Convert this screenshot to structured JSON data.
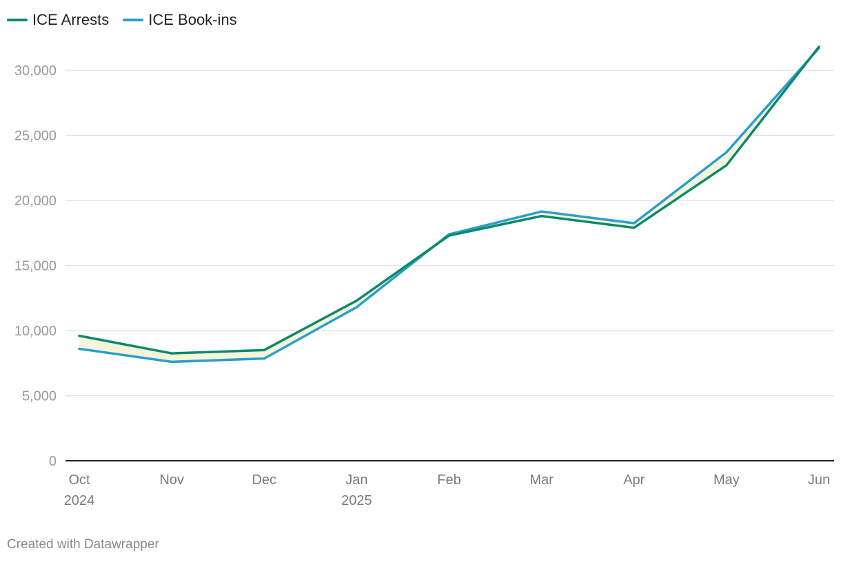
{
  "chart_data": {
    "type": "line",
    "categories": [
      "Oct 2024",
      "Nov",
      "Dec",
      "Jan 2025",
      "Feb",
      "Mar",
      "Apr",
      "May",
      "Jun"
    ],
    "x_tick_labels": [
      {
        "line1": "Oct",
        "line2": "2024"
      },
      {
        "line1": "Nov",
        "line2": ""
      },
      {
        "line1": "Dec",
        "line2": ""
      },
      {
        "line1": "Jan",
        "line2": "2025"
      },
      {
        "line1": "Feb",
        "line2": ""
      },
      {
        "line1": "Mar",
        "line2": ""
      },
      {
        "line1": "Apr",
        "line2": ""
      },
      {
        "line1": "May",
        "line2": ""
      },
      {
        "line1": "Jun",
        "line2": ""
      }
    ],
    "series": [
      {
        "name": "ICE Arrests",
        "color": "#0a8a6a",
        "values": [
          9600,
          8250,
          8500,
          12300,
          17300,
          18800,
          17900,
          22700,
          31800
        ]
      },
      {
        "name": "ICE Book-ins",
        "color": "#2a9fca",
        "values": [
          8600,
          7600,
          7850,
          11800,
          17400,
          19150,
          18250,
          23700,
          31700
        ]
      }
    ],
    "band_color": "#f7f4dc",
    "yticks": [
      0,
      5000,
      10000,
      15000,
      20000,
      25000,
      30000
    ],
    "ytick_labels": [
      "0",
      "5,000",
      "10,000",
      "15,000",
      "20,000",
      "25,000",
      "30,000"
    ],
    "ylim": [
      0,
      30000
    ],
    "grid": true,
    "legend": "top-left"
  },
  "footer": {
    "text": "Created with Datawrapper"
  }
}
